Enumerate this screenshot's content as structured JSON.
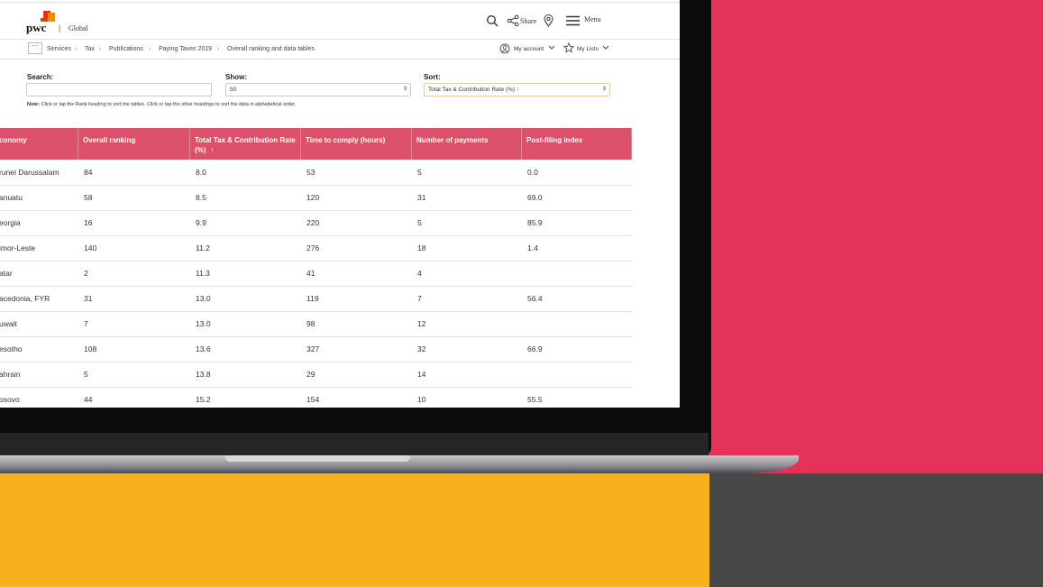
{
  "header": {
    "logo": "pwc",
    "region": "Global",
    "share": "Share",
    "menu": "Menu"
  },
  "breadcrumbs": [
    "Services",
    "Tax",
    "Publications",
    "Paying Taxes 2019",
    "Overall ranking and data tables"
  ],
  "account": {
    "my_account": "My account",
    "my_lists": "My Lists"
  },
  "filters": {
    "search_label": "Search:",
    "show_label": "Show:",
    "show_value": "50",
    "sort_label": "Sort:",
    "sort_value": "Total Tax & Contribution Rate (%) ↑"
  },
  "note": {
    "label": "Note:",
    "text": "Click or tap the Rank heading to sort the tables. Click or tap the other headings to sort the data in alphabetical order."
  },
  "table": {
    "columns": [
      "conomy",
      "Overall ranking",
      "Total Tax & Contribution Rate (%)",
      "Time to comply (hours)",
      "Number of payments",
      "Post-filing index"
    ],
    "sort_indicator": "↑",
    "rows": [
      [
        "runei Darussalam",
        "84",
        "8.0",
        "53",
        "5",
        "0.0"
      ],
      [
        "anuatu",
        "58",
        "8.5",
        "120",
        "31",
        "69.0"
      ],
      [
        "eorgia",
        "16",
        "9.9",
        "220",
        "5",
        "85.9"
      ],
      [
        "imor-Leste",
        "140",
        "11.2",
        "276",
        "18",
        "1.4"
      ],
      [
        "atar",
        "2",
        "11.3",
        "41",
        "4",
        null
      ],
      [
        "acedonia, FYR",
        "31",
        "13.0",
        "119",
        "7",
        "56.4"
      ],
      [
        "uwait",
        "7",
        "13.0",
        "98",
        "12",
        null
      ],
      [
        "esotho",
        "108",
        "13.6",
        "327",
        "32",
        "66.9"
      ],
      [
        "ahrain",
        "5",
        "13.8",
        "29",
        "14",
        null
      ],
      [
        "osovo",
        "44",
        "15.2",
        "154",
        "10",
        "55.5"
      ]
    ]
  }
}
